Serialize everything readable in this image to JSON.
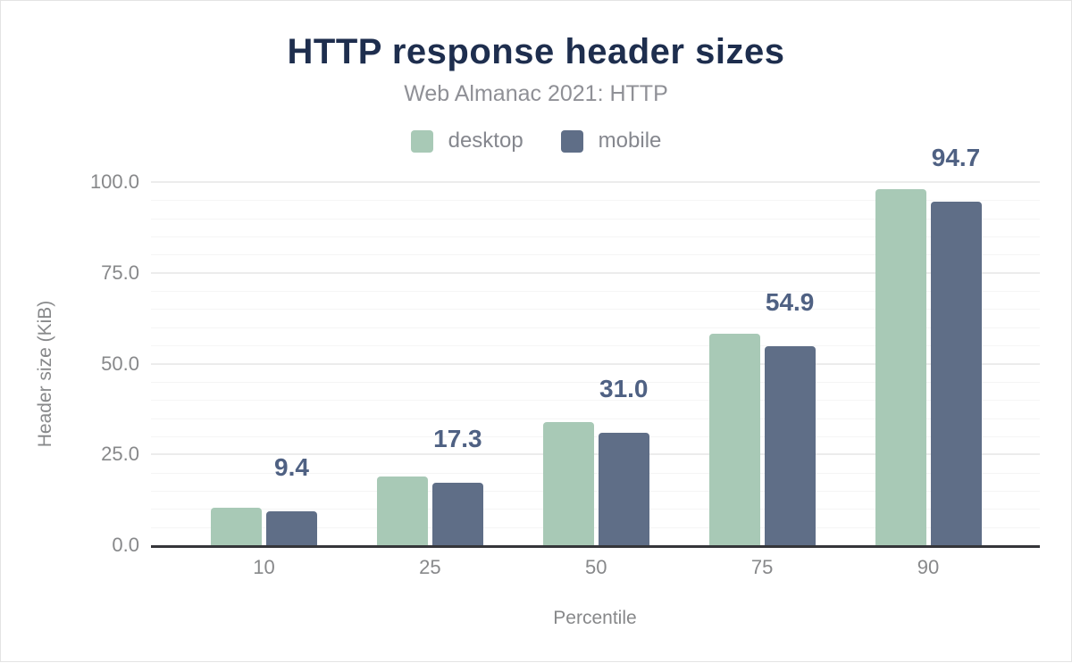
{
  "chart_data": {
    "type": "bar",
    "title": "HTTP response header sizes",
    "subtitle": "Web Almanac 2021: HTTP",
    "categories": [
      "10",
      "25",
      "50",
      "75",
      "90"
    ],
    "series": [
      {
        "name": "desktop",
        "color": "#a8c9b6",
        "values": [
          10.4,
          19.0,
          34.0,
          58.3,
          98.0
        ]
      },
      {
        "name": "mobile",
        "color": "#5f6e87",
        "values": [
          9.4,
          17.3,
          31.0,
          54.9,
          94.7
        ]
      }
    ],
    "value_labels": {
      "series": "mobile",
      "values": [
        "9.4",
        "17.3",
        "31.0",
        "54.9",
        "94.7"
      ],
      "color": "#4f6183"
    },
    "xlabel": "Percentile",
    "ylabel": "Header size (KiB)",
    "ylim": [
      0,
      100
    ],
    "yticks": {
      "values": [
        0,
        25,
        50,
        75,
        100
      ],
      "labels": [
        "0.0",
        "25.0",
        "50.0",
        "75.0",
        "100.0"
      ]
    },
    "grid": {
      "orientation": "horizontal",
      "minor_step": 5,
      "major_step": 25,
      "on": true
    },
    "legend_position": "top"
  }
}
